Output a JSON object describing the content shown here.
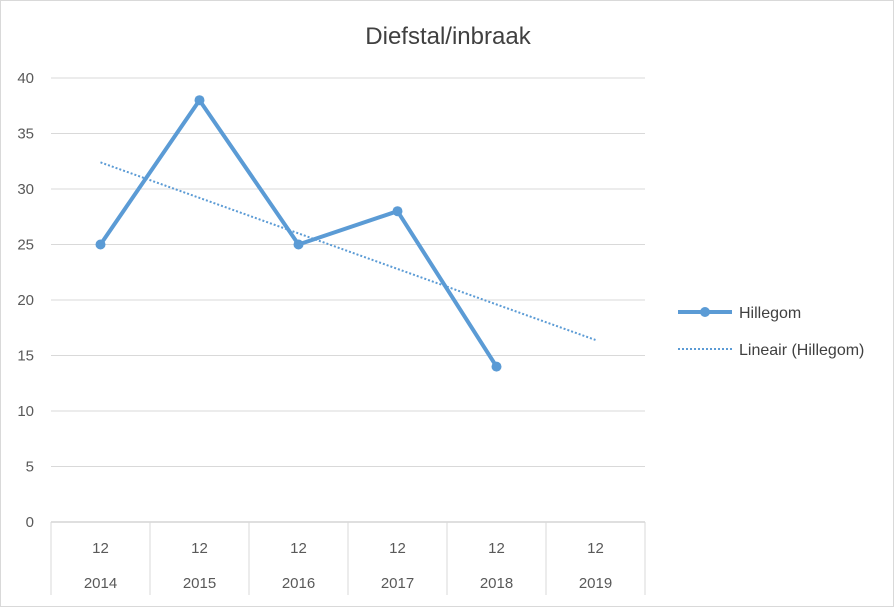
{
  "chart_data": {
    "type": "line",
    "title": "Diefstal/inbraak",
    "categories": [
      {
        "month": "12",
        "year": "2014"
      },
      {
        "month": "12",
        "year": "2015"
      },
      {
        "month": "12",
        "year": "2016"
      },
      {
        "month": "12",
        "year": "2017"
      },
      {
        "month": "12",
        "year": "2018"
      },
      {
        "month": "12",
        "year": "2019"
      }
    ],
    "series": [
      {
        "name": "Hillegom",
        "values": [
          25,
          38,
          25,
          28,
          14,
          null
        ],
        "color": "#5b9bd5",
        "marker": "circle"
      }
    ],
    "trendline": {
      "name": "Lineair (Hillegom)",
      "type": "linear",
      "of_series": "Hillegom",
      "extends_to_category": 5,
      "color": "#5b9bd5",
      "style": "dotted"
    },
    "ylim": [
      0,
      40
    ],
    "yticks": [
      "0",
      "5",
      "10",
      "15",
      "20",
      "25",
      "30",
      "35",
      "40"
    ],
    "xlabel": "",
    "ylabel": "",
    "grid": true,
    "legend": "right"
  }
}
